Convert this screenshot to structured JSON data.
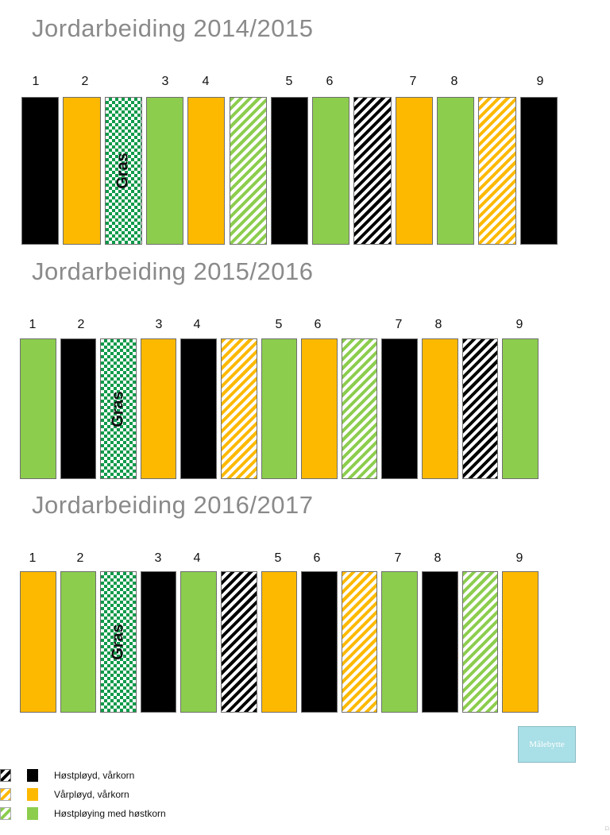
{
  "sections": [
    {
      "title": "Jordarbeiding 2014/2015",
      "labels": [
        "1",
        "2",
        "3",
        "4",
        "5",
        "6",
        "7",
        "8",
        "9"
      ],
      "strips": [
        "black",
        "yellow",
        "grass",
        "green",
        "yellow",
        "hatch-green",
        "black",
        "green",
        "hatch-black",
        "yellow",
        "green",
        "hatch-yellow",
        "black"
      ]
    },
    {
      "title": "Jordarbeiding 2015/2016",
      "labels": [
        "1",
        "2",
        "3",
        "4",
        "5",
        "6",
        "7",
        "8",
        "9"
      ],
      "strips": [
        "green",
        "black",
        "grass",
        "yellow",
        "black",
        "hatch-yellow",
        "green",
        "yellow",
        "hatch-green",
        "black",
        "yellow",
        "hatch-black",
        "green"
      ]
    },
    {
      "title": "Jordarbeiding 2016/2017",
      "labels": [
        "1",
        "2",
        "3",
        "4",
        "5",
        "6",
        "7",
        "8",
        "9"
      ],
      "strips": [
        "yellow",
        "green",
        "grass",
        "black",
        "green",
        "hatch-black",
        "yellow",
        "black",
        "hatch-yellow",
        "green",
        "black",
        "hatch-green",
        "yellow"
      ]
    }
  ],
  "grass_label": "Gras",
  "button": {
    "label": "Målebytte"
  },
  "legend": [
    {
      "label": "Høstpløyd, vårkorn",
      "color": "#000000",
      "pattern": "hatch-black"
    },
    {
      "label": "Vårpløyd, vårkorn",
      "color": "#fdb900",
      "pattern": "hatch-yellow"
    },
    {
      "label": "Høstpløying med høstkorn",
      "color": "#8ccd4e",
      "pattern": "hatch-green"
    }
  ],
  "colors": {
    "black": "#000000",
    "yellow": "#fdb900",
    "green": "#8ccd4e",
    "grass": "#0f9a4a",
    "title": "#8a8a8a"
  },
  "corner_mark": "□"
}
